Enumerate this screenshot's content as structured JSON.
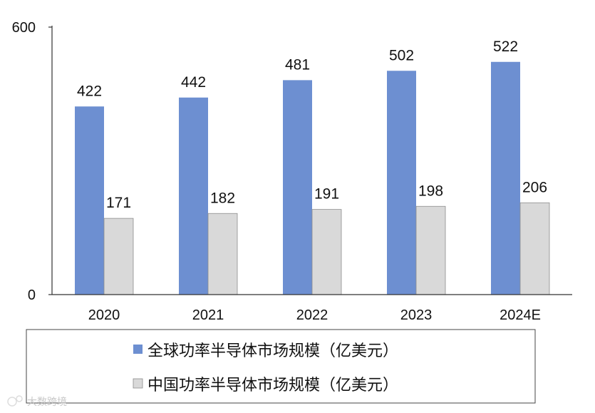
{
  "chart_data": {
    "type": "bar",
    "categories": [
      "2020",
      "2021",
      "2022",
      "2023",
      "2024E"
    ],
    "series": [
      {
        "name": "全球功率半导体市场规模（亿美元）",
        "values": [
          422,
          442,
          481,
          502,
          522
        ],
        "color": "#6d8fd1"
      },
      {
        "name": "中国功率半导体市场规模（亿美元）",
        "values": [
          171,
          182,
          191,
          198,
          206
        ],
        "color": "#d9d9d9"
      }
    ],
    "ylim": [
      0,
      600
    ],
    "yticks": [
      "0",
      "600"
    ],
    "title": "",
    "xlabel": "",
    "ylabel": "",
    "grid": false,
    "legend_position": "bottom"
  },
  "watermark": {
    "text": "大数跨境",
    "icon": "logo-icon"
  }
}
